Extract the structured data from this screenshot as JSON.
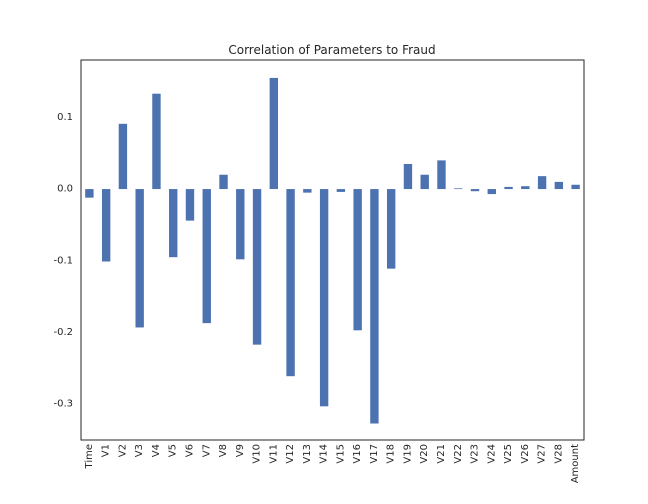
{
  "chart_data": {
    "type": "bar",
    "title": "Correlation of Parameters to Fraud",
    "xlabel": "",
    "ylabel": "",
    "categories": [
      "Time",
      "V1",
      "V2",
      "V3",
      "V4",
      "V5",
      "V6",
      "V7",
      "V8",
      "V9",
      "V10",
      "V11",
      "V12",
      "V13",
      "V14",
      "V15",
      "V16",
      "V17",
      "V18",
      "V19",
      "V20",
      "V21",
      "V22",
      "V23",
      "V24",
      "V25",
      "V26",
      "V27",
      "V28",
      "Amount"
    ],
    "values": [
      -0.012,
      -0.101,
      0.091,
      -0.193,
      0.133,
      -0.095,
      -0.044,
      -0.187,
      0.02,
      -0.098,
      -0.217,
      0.155,
      -0.261,
      -0.005,
      -0.303,
      -0.004,
      -0.197,
      -0.327,
      -0.111,
      0.035,
      0.02,
      0.04,
      0.001,
      -0.003,
      -0.007,
      0.003,
      0.004,
      0.018,
      0.01,
      0.006
    ],
    "ylim": [
      -0.35,
      0.18
    ],
    "yticks": [
      0.1,
      0.0,
      -0.1,
      -0.2,
      -0.3
    ],
    "ytick_labels": [
      "0.1",
      "0.0",
      "-0.1",
      "-0.2",
      "-0.3"
    ],
    "bar_color": "#4c72b0",
    "grid": false,
    "legend": "none"
  }
}
